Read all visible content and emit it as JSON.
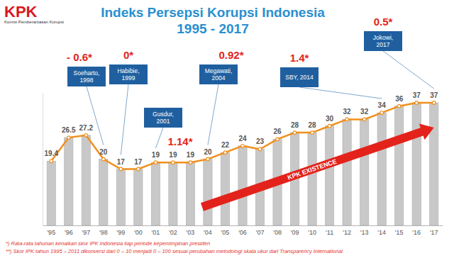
{
  "header": {
    "logo": "KPK",
    "organization": "Komisi Pemberantasan Korupsi"
  },
  "chart_data": {
    "type": "bar",
    "title": "Indeks Persepsi Korupsi Indonesia",
    "subtitle": "1995 - 2017",
    "categories": [
      "'95",
      "'96",
      "'97",
      "'98",
      "'99",
      "'00",
      "'01",
      "'02",
      "'03",
      "'04",
      "'05",
      "'06",
      "'07",
      "'08",
      "'09",
      "'10",
      "'11",
      "'12",
      "'13",
      "'14",
      "'15",
      "'16",
      "'17"
    ],
    "values": [
      19.4,
      26.5,
      27.2,
      20,
      17,
      17,
      19,
      19,
      19,
      20,
      22,
      24,
      23,
      26,
      28,
      28,
      30,
      32,
      32,
      34,
      36,
      37,
      37
    ],
    "color": "#c8c8c8",
    "ylim": [
      0,
      40
    ],
    "data_labels": true,
    "tick_labels": "x",
    "annotations": [
      {
        "lines": [
          "Soeharto,",
          "1998"
        ],
        "text": "- 0.6*",
        "category": "'98"
      },
      {
        "lines": [
          "Habibie,",
          "1999"
        ],
        "text": "0*",
        "category": "'99"
      },
      {
        "lines": [
          "Gusdur,",
          "2001"
        ],
        "text": "1.14*",
        "category": "'01"
      },
      {
        "lines": [
          "Megawati,",
          "2004"
        ],
        "text": "0.92*",
        "category": "'04"
      },
      {
        "lines": [
          "SBY, 2014"
        ],
        "text": "1.4*",
        "category": "'14"
      },
      {
        "lines": [
          "Jokowi,",
          "2017"
        ],
        "text": "0.5*",
        "category": "'17"
      }
    ],
    "arrow": {
      "text": "KPK EXISTENCE",
      "from": "'04",
      "to": "'17"
    },
    "footnotes": [
      "*) Rata-rata tahunan kenaikan skor IPK Indonesia tiap periode kepemimpinan presiden",
      "**) Skor IPK tahun 1995 – 2011 dikonversi dari 0 – 10 menjadi 0 – 100 sesuai perubahan metodologi skala ukur dari Transparency International"
    ]
  }
}
